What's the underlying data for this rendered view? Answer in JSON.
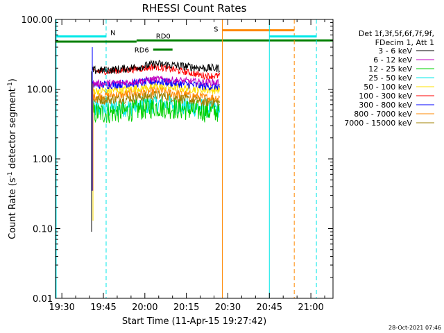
{
  "chart_data": {
    "type": "line",
    "title": "RHESSI Count Rates",
    "xlabel": "Start Time (11-Apr-15 19:27:42)",
    "ylabel_main": "Count Rate (s",
    "ylabel_sup1": "-1",
    "ylabel_mid": " detector segment",
    "ylabel_sup2": "-1",
    "ylabel_end": ")",
    "y_scale": "log",
    "xlim": [
      "19:27:42",
      "21:08"
    ],
    "ylim": [
      0.01,
      100
    ],
    "x_ticks": [
      "19:30",
      "19:45",
      "20:00",
      "20:15",
      "20:30",
      "20:45",
      "21:00"
    ],
    "y_ticks": [
      "0.01",
      "0.10",
      "1.00",
      "10.00",
      "100.00"
    ],
    "legend_header": [
      "Det 1f,3f,5f,6f,7f,9f,",
      "FDecim 1, Att 1"
    ],
    "legend_placement": "right",
    "timestamp": "28-Oct-2021 07:46",
    "data_start": "19:41",
    "data_end": "20:27",
    "series": [
      {
        "name": "3 - 6 keV",
        "color": "#000000",
        "level_start": 18.5,
        "level_peak": 23.0,
        "level_end": 20.0,
        "noise": 0.06
      },
      {
        "name": "6 - 12 keV",
        "color": "#c000c0",
        "level_start": 12.0,
        "level_peak": 14.0,
        "level_end": 12.5,
        "noise": 0.05
      },
      {
        "name": "12 - 25 keV",
        "color": "#00d000",
        "level_start": 4.5,
        "level_peak": 5.6,
        "level_end": 4.8,
        "noise": 0.16
      },
      {
        "name": "25 - 50 keV",
        "color": "#00e8e8",
        "level_start": 5.2,
        "level_peak": 6.2,
        "level_end": 5.3,
        "noise": 0.14
      },
      {
        "name": "50 - 100 keV",
        "color": "#ffe000",
        "level_start": 9.5,
        "level_peak": 11.0,
        "level_end": 9.8,
        "noise": 0.06
      },
      {
        "name": "100 - 300 keV",
        "color": "#ff0000",
        "level_start": 18.0,
        "level_peak": 21.0,
        "level_end": 15.5,
        "noise": 0.05
      },
      {
        "name": "300 - 800 keV",
        "color": "#0000ff",
        "level_start": 11.5,
        "level_peak": 13.0,
        "level_end": 11.0,
        "noise": 0.06
      },
      {
        "name": "800 - 7000 keV",
        "color": "#ff8800",
        "level_start": 8.0,
        "level_peak": 9.5,
        "level_end": 7.5,
        "noise": 0.07
      },
      {
        "name": "7000 - 15000 keV",
        "color": "#a08000",
        "level_start": 7.0,
        "level_peak": 8.2,
        "level_end": 6.5,
        "noise": 0.07
      }
    ],
    "markers": [
      {
        "label": "N",
        "color": "#00e8e8",
        "bar_start": "19:27:42",
        "bar_end": "19:46",
        "bar_y": 57,
        "line_solid": "19:27:42",
        "line_dashed": "19:46"
      },
      {
        "label": "RD0",
        "color": "#008000",
        "bar_start": "19:57",
        "bar_end": "21:08",
        "bar_y": 50
      },
      {
        "label": "RD6",
        "color": "#008000",
        "bar_start": "20:03",
        "bar_end": "20:10",
        "bar_y": 37
      },
      {
        "label": "S",
        "color": "#ff8800",
        "bar_start": "20:28",
        "bar_end": "20:54",
        "bar_y": 70,
        "line_solid": "20:28",
        "line_dashed": "20:54"
      },
      {
        "label": "",
        "color": "#00e8e8",
        "bar_start": "20:45",
        "bar_end": "21:02",
        "bar_y": 57,
        "line_solid": "20:45",
        "line_dashed": "21:02"
      },
      {
        "label": "",
        "color": "#008000",
        "bar_start": "19:27:42",
        "bar_end": "19:57",
        "bar_y": 48
      }
    ]
  }
}
